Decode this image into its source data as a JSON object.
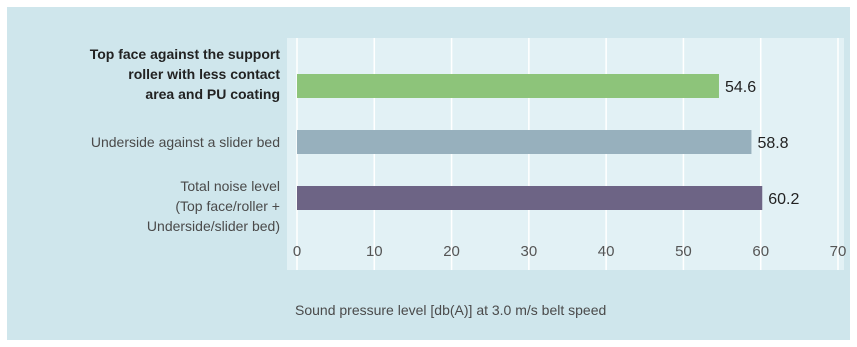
{
  "chart_data": {
    "type": "bar",
    "orientation": "horizontal",
    "categories": [
      "Top face against the support roller with less contact area and PU coating",
      "Underside against a slider bed",
      "Total noise level (Top face/roller + Underside/slider bed)"
    ],
    "category_lines": [
      [
        "Top face against the support",
        "roller with less contact",
        "area and PU coating"
      ],
      [
        "Underside against a slider bed"
      ],
      [
        "Total noise level",
        "(Top face/roller +",
        "Underside/slider bed)"
      ]
    ],
    "values": [
      54.6,
      58.8,
      60.2
    ],
    "value_labels": [
      "54.6",
      "58.8",
      "60.2"
    ],
    "bar_colors": [
      "#8dc47a",
      "#97b0bd",
      "#6d6485"
    ],
    "xlabel": "Sound pressure level [db(A)] at 3.0 m/s belt speed",
    "xlim": [
      0,
      70
    ],
    "x_ticks": [
      0,
      10,
      20,
      30,
      40,
      50,
      60,
      70
    ],
    "grid": true
  },
  "colors": {
    "background": "#cfe6ec",
    "plot_background": "#e2f1f5",
    "gridline": "#ffffff"
  }
}
